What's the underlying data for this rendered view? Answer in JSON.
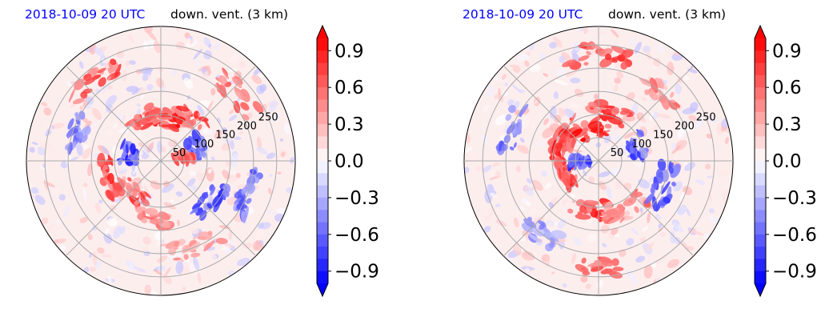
{
  "chart_data": [
    {
      "type": "heatmap",
      "title_date": "2018-10-09 20 UTC",
      "title_variable": "down. vent. (3 km)",
      "projection": "polar",
      "ring_labels": [
        "50",
        "100",
        "150",
        "200",
        "250"
      ],
      "ring_values": [
        50,
        100,
        150,
        200,
        250
      ],
      "colorbar": {
        "ticks": [
          "0.9",
          "0.6",
          "0.3",
          "0.0",
          "−0.3",
          "−0.6",
          "−0.9"
        ],
        "tick_values": [
          0.9,
          0.6,
          0.3,
          0.0,
          -0.3,
          -0.6,
          -0.9
        ],
        "range": [
          -1.0,
          1.0
        ],
        "extend": "both",
        "colormap": "bwr"
      },
      "features": [
        {
          "angle": 80,
          "radius": 95,
          "value": 1.0,
          "extent": 45
        },
        {
          "angle": 60,
          "radius": 110,
          "value": 0.9,
          "extent": 40
        },
        {
          "angle": 110,
          "radius": 100,
          "value": 0.9,
          "extent": 35
        },
        {
          "angle": 200,
          "radius": 115,
          "value": 0.9,
          "extent": 45
        },
        {
          "angle": 230,
          "radius": 95,
          "value": 0.8,
          "extent": 40
        },
        {
          "angle": 260,
          "radius": 130,
          "value": 0.6,
          "extent": 35
        },
        {
          "angle": 170,
          "radius": 70,
          "value": -0.9,
          "extent": 30
        },
        {
          "angle": 20,
          "radius": 80,
          "value": -0.8,
          "extent": 30
        },
        {
          "angle": 320,
          "radius": 140,
          "value": -0.9,
          "extent": 35
        },
        {
          "angle": 340,
          "radius": 200,
          "value": -0.7,
          "extent": 30
        },
        {
          "angle": 10,
          "radius": 50,
          "value": 0.9,
          "extent": 20
        },
        {
          "angle": 130,
          "radius": 225,
          "value": 0.8,
          "extent": 30
        },
        {
          "angle": 40,
          "radius": 220,
          "value": 0.7,
          "extent": 30
        },
        {
          "angle": 290,
          "radius": 200,
          "value": 0.5,
          "extent": 35
        },
        {
          "angle": 160,
          "radius": 190,
          "value": -0.6,
          "extent": 25
        }
      ]
    },
    {
      "type": "heatmap",
      "title_date": "2018-10-09 20 UTC",
      "title_variable": "down. vent. (3 km)",
      "projection": "polar",
      "ring_labels": [
        "50",
        "100",
        "150",
        "200",
        "250"
      ],
      "ring_values": [
        50,
        100,
        150,
        200,
        250
      ],
      "colorbar": {
        "ticks": [
          "0.9",
          "0.6",
          "0.3",
          "0.0",
          "−0.3",
          "−0.6",
          "−0.9"
        ],
        "tick_values": [
          0.9,
          0.6,
          0.3,
          0.0,
          -0.3,
          -0.6,
          -0.9
        ],
        "range": [
          -1.0,
          1.0
        ],
        "extend": "both",
        "colormap": "bwr"
      },
      "features": [
        {
          "angle": 100,
          "radius": 70,
          "value": 1.0,
          "extent": 60
        },
        {
          "angle": 140,
          "radius": 90,
          "value": 1.0,
          "extent": 55
        },
        {
          "angle": 170,
          "radius": 85,
          "value": 1.0,
          "extent": 55
        },
        {
          "angle": 75,
          "radius": 110,
          "value": 0.9,
          "extent": 50
        },
        {
          "angle": 200,
          "radius": 75,
          "value": 0.9,
          "extent": 45
        },
        {
          "angle": 260,
          "radius": 110,
          "value": 0.9,
          "extent": 45
        },
        {
          "angle": 300,
          "radius": 120,
          "value": 0.7,
          "extent": 40
        },
        {
          "angle": 180,
          "radius": 40,
          "value": -0.9,
          "extent": 20
        },
        {
          "angle": 20,
          "radius": 90,
          "value": -0.8,
          "extent": 30
        },
        {
          "angle": 340,
          "radius": 150,
          "value": -0.8,
          "extent": 35
        },
        {
          "angle": 160,
          "radius": 200,
          "value": -0.7,
          "extent": 30
        },
        {
          "angle": 270,
          "radius": 230,
          "value": 0.8,
          "extent": 30
        },
        {
          "angle": 90,
          "radius": 230,
          "value": 0.8,
          "extent": 35
        },
        {
          "angle": 45,
          "radius": 200,
          "value": 0.6,
          "extent": 30
        },
        {
          "angle": 230,
          "radius": 200,
          "value": -0.5,
          "extent": 25
        }
      ]
    }
  ]
}
